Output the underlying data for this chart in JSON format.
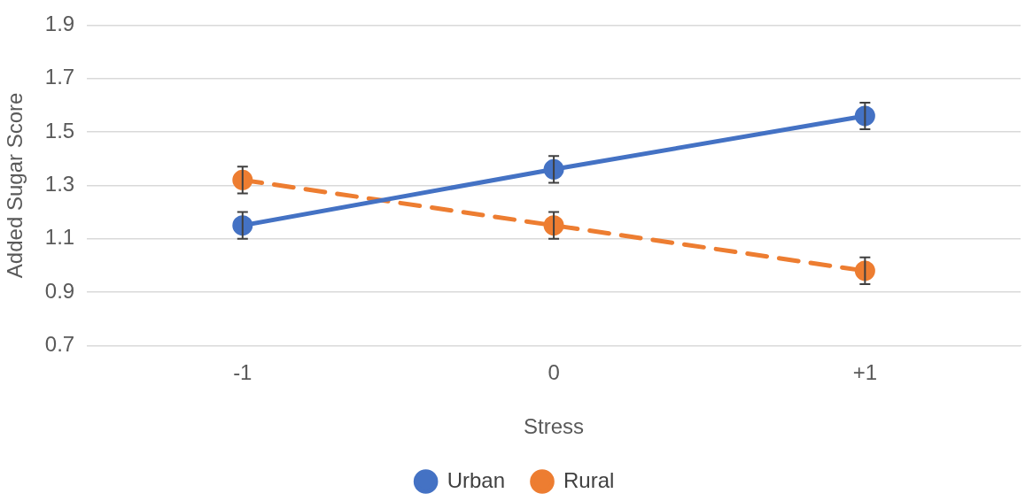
{
  "chart_data": {
    "type": "line",
    "xlabel": "Stress",
    "ylabel": "Added Sugar Score",
    "categories": [
      "-1",
      "0",
      "+1"
    ],
    "series": [
      {
        "name": "Urban",
        "color": "#4472c4",
        "values": [
          1.15,
          1.36,
          1.56
        ],
        "errors": [
          0.05,
          0.05,
          0.05
        ],
        "line_style": "solid"
      },
      {
        "name": "Rural",
        "color": "#ed7d31",
        "values": [
          1.32,
          1.15,
          0.98
        ],
        "errors": [
          0.05,
          0.05,
          0.05
        ],
        "line_style": "dashed"
      }
    ],
    "ylim": [
      0.7,
      1.9
    ],
    "yticks": [
      0.7,
      0.9,
      1.1,
      1.3,
      1.5,
      1.7,
      1.9
    ],
    "grid": "y",
    "legend": "bottom",
    "marker": "circle"
  }
}
